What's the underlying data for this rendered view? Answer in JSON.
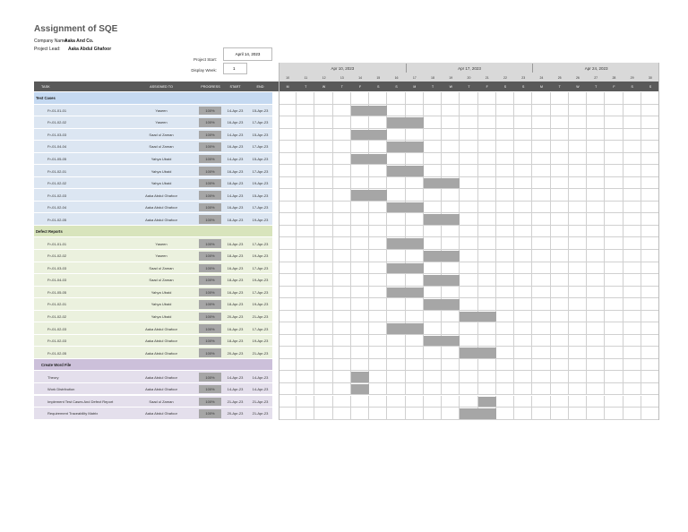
{
  "header": {
    "title": "Assignment of SQE",
    "company_label": "Company Name:",
    "company": "Aaka And Co.",
    "lead_label": "Project Lead:",
    "lead": "Aaka Abdul Ghafoor"
  },
  "settings": {
    "start_label": "Project Start:",
    "start": "April 14, 2023",
    "week_label": "Display Week:",
    "week": 1
  },
  "columns": [
    "TASK",
    "ASSIGNED TO",
    "PROGRESS",
    "START",
    "END"
  ],
  "weeks": [
    "Apr 10, 2023",
    "Apr 17, 2023",
    "Apr 24, 2023"
  ],
  "days": [
    10,
    11,
    12,
    13,
    14,
    15,
    16,
    17,
    18,
    19,
    20,
    21,
    22,
    23,
    24,
    25,
    26,
    27,
    28,
    29,
    30
  ],
  "weekdays": [
    "M",
    "T",
    "W",
    "T",
    "F",
    "S",
    "S",
    "M",
    "T",
    "W",
    "T",
    "F",
    "S",
    "S",
    "M",
    "T",
    "W",
    "T",
    "F",
    "S",
    "S"
  ],
  "sections": [
    {
      "title": "Test Cases",
      "rows": [
        [
          "Fr-01-01-01",
          "Yaseen",
          "100%",
          "14-Apr-23",
          "15-Apr-23"
        ],
        [
          "Fr-01-02-02",
          "Yaseen",
          "100%",
          "16-Apr-23",
          "17-Apr-23"
        ],
        [
          "Fr-01-03-03",
          "Saad ul Zaman",
          "100%",
          "14-Apr-23",
          "15-Apr-23"
        ],
        [
          "Fr-01-04-04",
          "Saad ul Zaman",
          "100%",
          "16-Apr-23",
          "17-Apr-23"
        ],
        [
          "Fr-01-05-05",
          "Yahya Ubaid",
          "100%",
          "14-Apr-23",
          "15-Apr-23"
        ],
        [
          "Fr-01-02-01",
          "Yahya Ubaid",
          "100%",
          "16-Apr-23",
          "17-Apr-23"
        ],
        [
          "Fr-01-02-02",
          "Yahya Ubaid",
          "100%",
          "18-Apr-23",
          "19-Apr-23"
        ],
        [
          "Fr-01-02-03",
          "Aaka Abdul Ghafoor",
          "100%",
          "14-Apr-23",
          "15-Apr-23"
        ],
        [
          "Fr-01-02-04",
          "Aaka Abdul Ghafoor",
          "100%",
          "16-Apr-23",
          "17-Apr-23"
        ],
        [
          "Fr-01-02-05",
          "Aaka Abdul Ghafoor",
          "100%",
          "18-Apr-23",
          "19-Apr-23"
        ]
      ]
    },
    {
      "title": "Defect Reports",
      "rows": [
        [
          "Fr-01-01-01",
          "Yaseen",
          "100%",
          "16-Apr-23",
          "17-Apr-23"
        ],
        [
          "Fr-01-02-02",
          "Yaseen",
          "100%",
          "18-Apr-23",
          "19-Apr-23"
        ],
        [
          "Fr-01-03-03",
          "Saad ul Zaman",
          "100%",
          "16-Apr-23",
          "17-Apr-23"
        ],
        [
          "Fr-01-04-03",
          "Saad ul Zaman",
          "100%",
          "18-Apr-23",
          "19-Apr-23"
        ],
        [
          "Fr-01-05-05",
          "Yahya Ubaid",
          "100%",
          "16-Apr-23",
          "17-Apr-23"
        ],
        [
          "Fr-01-02-01",
          "Yahya Ubaid",
          "100%",
          "18-Apr-23",
          "19-Apr-23"
        ],
        [
          "Fr-01-02-02",
          "Yahya Ubaid",
          "100%",
          "20-Apr-23",
          "21-Apr-23"
        ],
        [
          "Fr-01-02-03",
          "Aaka Abdul Ghafoor",
          "100%",
          "16-Apr-23",
          "17-Apr-23"
        ],
        [
          "Fr-01-02-03",
          "Aaka Abdul Ghafoor",
          "100%",
          "18-Apr-23",
          "19-Apr-23"
        ],
        [
          "Fr-01-02-05",
          "Aaka Abdul Ghafoor",
          "100%",
          "20-Apr-23",
          "21-Apr-23"
        ]
      ]
    },
    {
      "title": "Create Word File",
      "rows": [
        [
          "Theory",
          "Aaka Abdul Ghafoor",
          "100%",
          "14-Apr-23",
          "14-Apr-23"
        ],
        [
          "Work Distribution",
          "Aaka Abdul Ghafoor",
          "100%",
          "14-Apr-23",
          "14-Apr-23"
        ],
        [
          "Implement Test Cases And Defect Report",
          "Saad ul Zaman",
          "100%",
          "21-Apr-23",
          "21-Apr-23"
        ],
        [
          "Requirement Traceability Matrix",
          "Aaka Abdul Ghafoor",
          "100%",
          "20-Apr-23",
          "21-Apr-23"
        ]
      ]
    }
  ]
}
